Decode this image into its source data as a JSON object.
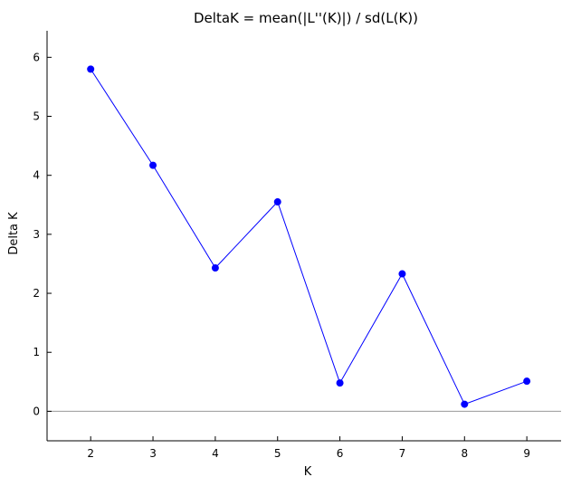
{
  "chart_data": {
    "type": "line",
    "title": "DeltaK = mean(|L''(K)|) / sd(L(K))",
    "xlabel": "K",
    "ylabel": "Delta K",
    "x": [
      2,
      3,
      4,
      5,
      6,
      7,
      8,
      9
    ],
    "series": [
      {
        "values": [
          5.8,
          4.17,
          2.43,
          3.55,
          0.48,
          2.33,
          0.12,
          0.51
        ]
      }
    ],
    "x_ticks": [
      "2",
      "3",
      "4",
      "5",
      "6",
      "7",
      "8",
      "9"
    ],
    "y_ticks": [
      "0",
      "1",
      "2",
      "3",
      "4",
      "5",
      "6"
    ],
    "xlim": [
      1.3,
      9.55
    ],
    "ylim": [
      -0.5,
      6.45
    ],
    "reference_line_y": 0,
    "grid": false,
    "colors": {
      "series": "#0000ff",
      "reference_line": "#999999",
      "axis": "#000000"
    }
  }
}
